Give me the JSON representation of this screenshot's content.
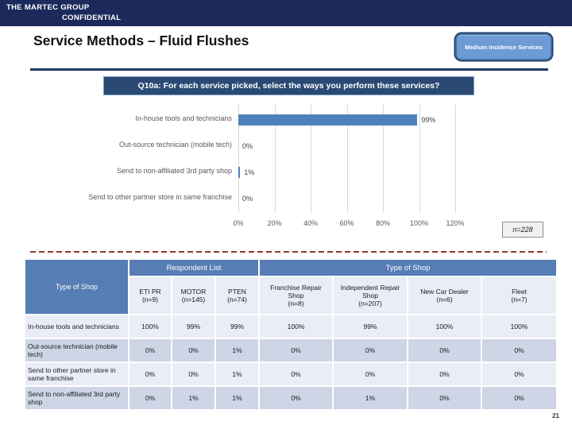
{
  "header": {
    "brand": "THE MARTEC GROUP",
    "confidential": "CONFIDENTIAL"
  },
  "title": "Service Methods – Fluid Flushes",
  "badge_label": "Medium Incidence Services",
  "question_banner": "Q10a: For each service picked, select the ways you perform these services?",
  "chart_data": {
    "type": "bar",
    "orientation": "horizontal",
    "categories": [
      "In-house tools and technicians",
      "Out-source technician (mobile tech)",
      "Send to non-affiliated 3rd party shop",
      "Send to other partner store in same franchise"
    ],
    "values": [
      99,
      0,
      1,
      0
    ],
    "value_labels": [
      "99%",
      "0%",
      "1%",
      "0%"
    ],
    "x_ticks": [
      "0%",
      "20%",
      "40%",
      "60%",
      "80%",
      "100%",
      "120%"
    ],
    "xlim": [
      0,
      120
    ],
    "grid": true,
    "bar_color": "#4E81BC",
    "gridline_color": "#D9D9D9",
    "sample_size_label": "n=228"
  },
  "table": {
    "corner_label": "Type of Shop",
    "group_headers": [
      {
        "label": "Respondent List",
        "span": 3
      },
      {
        "label": "Type of Shop",
        "span": 4
      }
    ],
    "columns": [
      {
        "name": "ETI PR",
        "n": "(n=9)"
      },
      {
        "name": "MOTOR",
        "n": "(n=145)"
      },
      {
        "name": "PTEN",
        "n": "(n=74)"
      },
      {
        "name": "Franchise Repair Shop",
        "n": "(n=8)"
      },
      {
        "name": "Independent Repair Shop",
        "n": "(n=207)"
      },
      {
        "name": "New Car Dealer",
        "n": "(n=6)"
      },
      {
        "name": "Fleet",
        "n": "(n=7)"
      }
    ],
    "rows": [
      {
        "label": "In-house tools and technicians",
        "values": [
          "100%",
          "99%",
          "99%",
          "100%",
          "99%",
          "100%",
          "100%"
        ]
      },
      {
        "label": "Out-source technician (mobile tech)",
        "values": [
          "0%",
          "0%",
          "1%",
          "0%",
          "0%",
          "0%",
          "0%"
        ]
      },
      {
        "label": "Send to other partner store in same franchise",
        "values": [
          "0%",
          "0%",
          "1%",
          "0%",
          "0%",
          "0%",
          "0%"
        ]
      },
      {
        "label": "Send to non-affiliated 3rd party shop",
        "values": [
          "0%",
          "1%",
          "1%",
          "0%",
          "1%",
          "0%",
          "0%"
        ]
      }
    ]
  },
  "page_number": "21",
  "colors": {
    "header_bar": "#1B2A5B",
    "title_rule": "#1F3864",
    "banner_bg": "#2A4A74",
    "badge_fill": "#6C9BD5",
    "badge_border": "#41719C",
    "bar": "#4E81BC",
    "table_header": "#567EB5",
    "band_light": "#E9EDF5",
    "band_dark": "#CDD5E6",
    "dash_red": "#953735"
  }
}
